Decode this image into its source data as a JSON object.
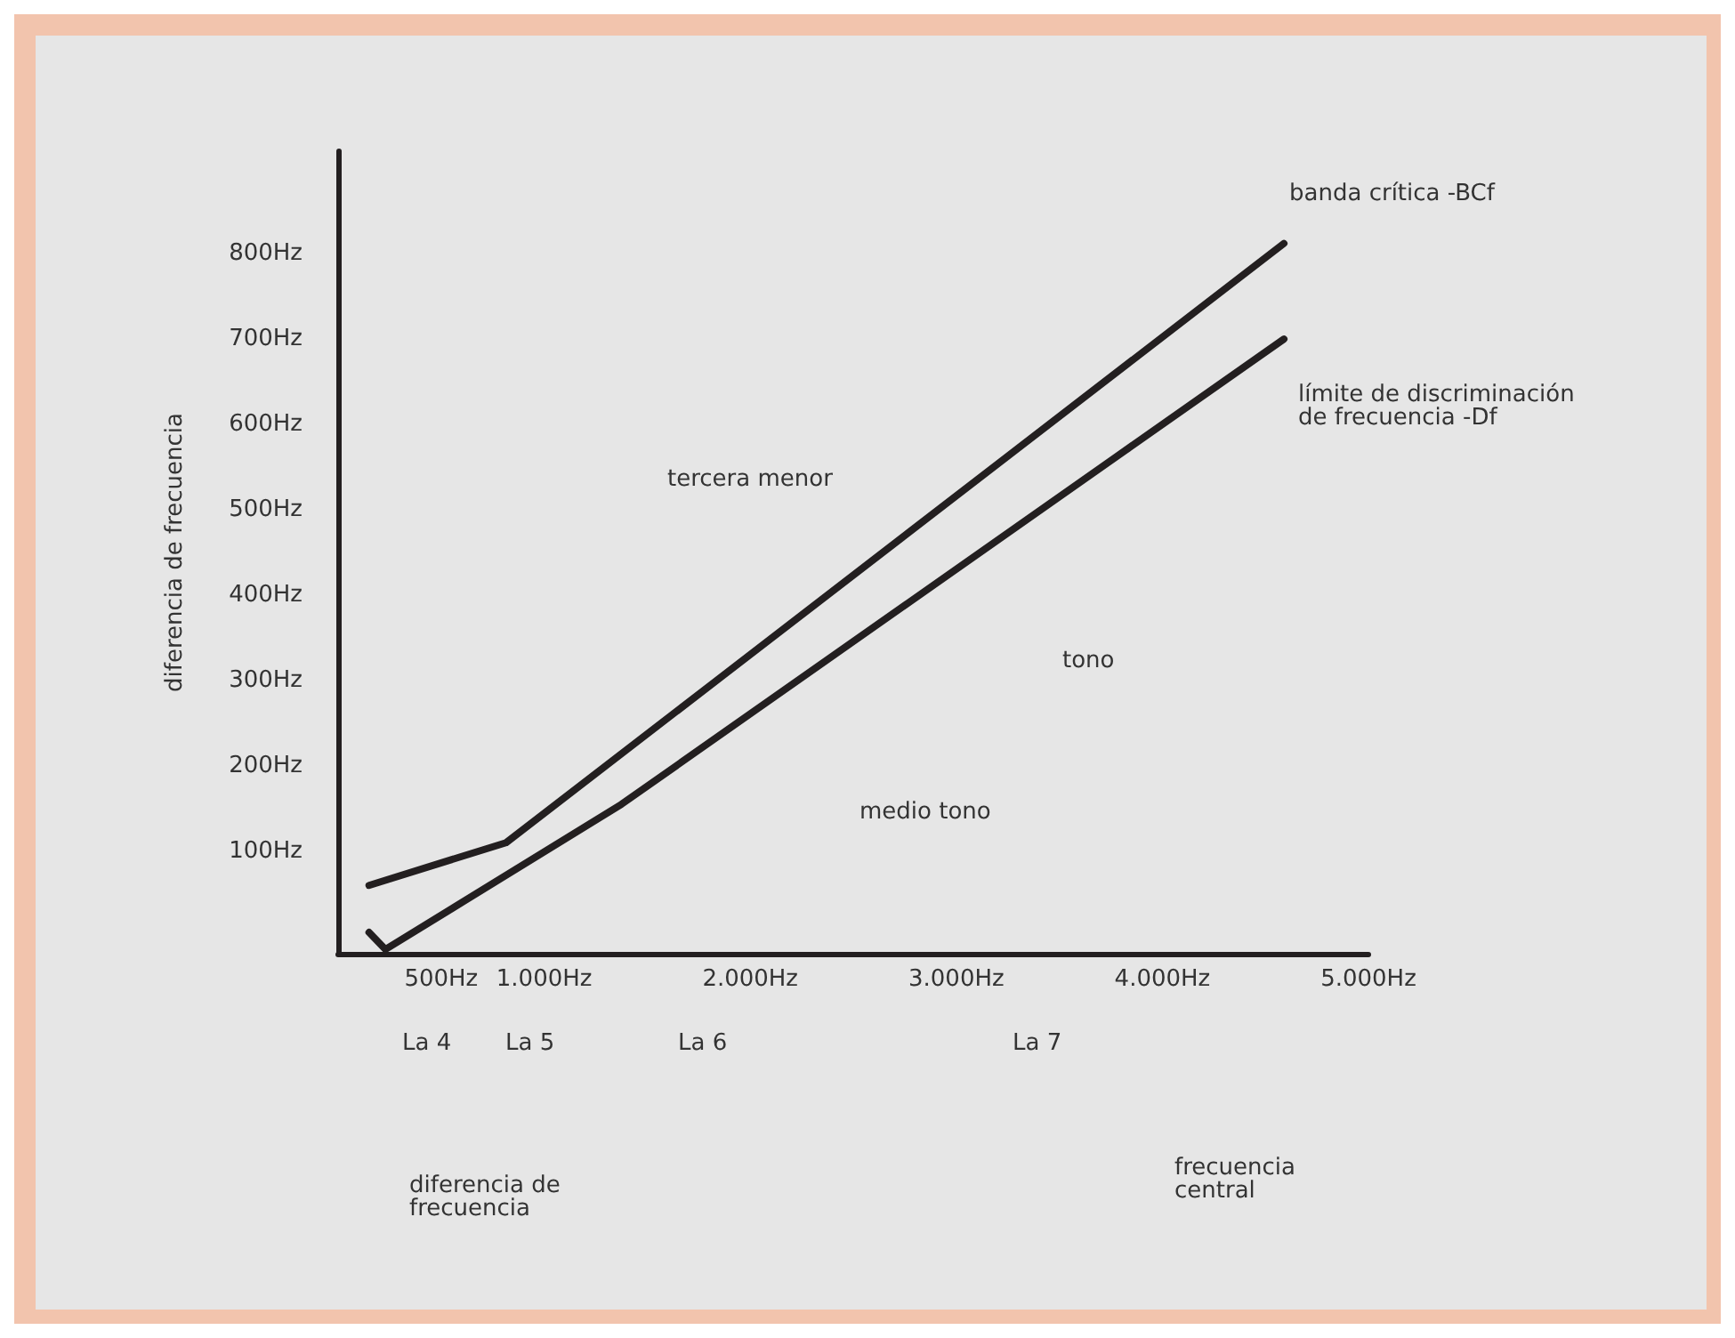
{
  "chart_data": {
    "type": "line",
    "ylabel": "diferencia de frecuencia",
    "xlim": [
      0,
      5000
    ],
    "xticks": [
      {
        "value": 500,
        "label": "500Hz"
      },
      {
        "value": 1000,
        "label": "1.000Hz"
      },
      {
        "value": 2000,
        "label": "2.000Hz"
      },
      {
        "value": 3000,
        "label": "3.000Hz"
      },
      {
        "value": 4000,
        "label": "4.000Hz"
      },
      {
        "value": 5000,
        "label": "5.000Hz"
      }
    ],
    "ylim": [
      -20,
      920
    ],
    "yticks": [
      {
        "value": 100,
        "label": "100Hz"
      },
      {
        "value": 200,
        "label": "200Hz"
      },
      {
        "value": 300,
        "label": "300Hz"
      },
      {
        "value": 400,
        "label": "400Hz"
      },
      {
        "value": 500,
        "label": "500Hz"
      },
      {
        "value": 600,
        "label": "600Hz"
      },
      {
        "value": 700,
        "label": "700Hz"
      },
      {
        "value": 800,
        "label": "800Hz"
      }
    ],
    "series": [
      {
        "name": "banda crítica -BCf",
        "color": "#231f20",
        "x": [
          150,
          815,
          4590
        ],
        "values": [
          60,
          110,
          812
        ]
      },
      {
        "name": "límite de discriminación de frecuencia -Df",
        "color": "#231f20",
        "x": [
          150,
          230,
          1375,
          4590
        ],
        "values": [
          5,
          -15,
          155,
          700
        ]
      }
    ],
    "annotations": [
      "tercera menor",
      "tono",
      "medio tono",
      "diferencia de frecuencia",
      "La 4",
      "La 5",
      "La 6",
      "La 7",
      "frecuencia central"
    ],
    "marker": "none",
    "line_style": "solid",
    "grid": false,
    "legend": false
  }
}
